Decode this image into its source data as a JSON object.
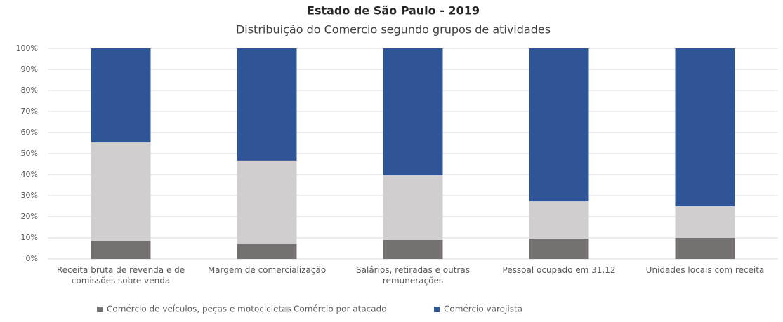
{
  "chart_data": {
    "type": "stacked_bar_100",
    "title": "Estado de São Paulo - 2019",
    "subtitle": "Distribuição do Comercio segundo grupos de atividades",
    "categories": [
      "Receita bruta de revenda e de comissões sobre venda",
      "Margem de comercialização",
      "Salários, retiradas e outras remunerações",
      "Pessoal ocupado em 31.12",
      "Unidades locais com receita"
    ],
    "series": [
      {
        "name": "Comércio de veículos, peças e  motocicletas",
        "color": "#767171",
        "values": [
          8.5,
          7,
          9,
          9.7,
          10
        ]
      },
      {
        "name": "Comércio por atacado",
        "color": "#d0cece",
        "values": [
          46.8,
          39.7,
          30.7,
          17.6,
          15
        ]
      },
      {
        "name": "Comércio varejista",
        "color": "#2f5597",
        "values": [
          44.7,
          53.3,
          60.3,
          72.7,
          75
        ]
      }
    ],
    "ylim": [
      0,
      100
    ],
    "yticks": [
      {
        "value": 0,
        "label": "0%"
      },
      {
        "value": 10,
        "label": "10%"
      },
      {
        "value": 20,
        "label": "20%"
      },
      {
        "value": 30,
        "label": "30%"
      },
      {
        "value": 40,
        "label": "40%"
      },
      {
        "value": 50,
        "label": "50%"
      },
      {
        "value": 60,
        "label": "60%"
      },
      {
        "value": 70,
        "label": "70%"
      },
      {
        "value": 80,
        "label": "80%"
      },
      {
        "value": 90,
        "label": "90%"
      },
      {
        "value": 100,
        "label": "100%"
      }
    ],
    "grid": true,
    "legend": "bottom"
  }
}
